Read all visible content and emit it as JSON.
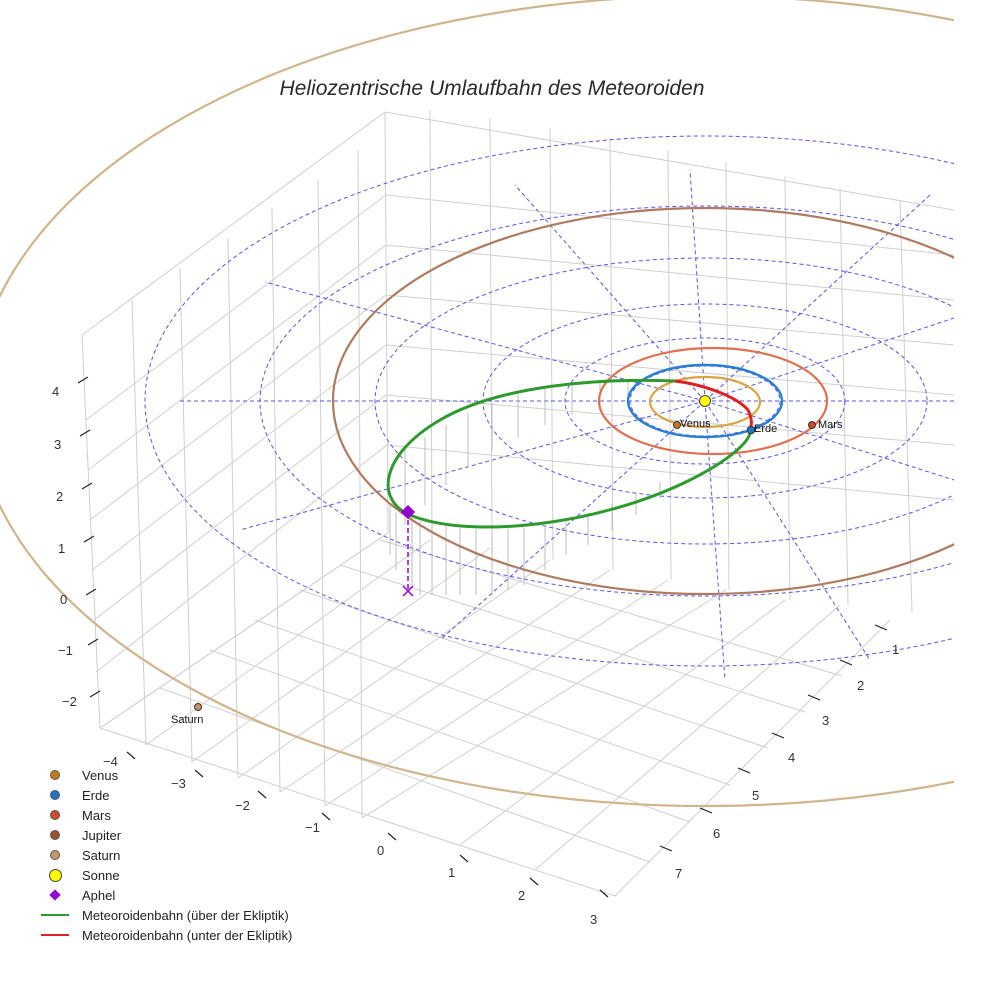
{
  "chart_data": {
    "type": "3d-line",
    "title": "Heliozentrische Umlaufbahn des Meteoroiden",
    "axes": {
      "x": {
        "ticks": [
          "−4",
          "−3",
          "−2",
          "−1",
          "0",
          "1",
          "2",
          "3"
        ]
      },
      "y": {
        "ticks": [
          "1",
          "2",
          "3",
          "4",
          "5",
          "6",
          "7"
        ]
      },
      "z": {
        "ticks": [
          "−2",
          "−1",
          "0",
          "1",
          "2",
          "3",
          "4"
        ]
      }
    },
    "bodies": [
      {
        "name": "Venus",
        "label": "Venus",
        "color": "#c47a1a",
        "orbit_color": "#d9a441"
      },
      {
        "name": "Erde",
        "label": "Erde",
        "color": "#1f77c4",
        "orbit_color": "#2a7fd4"
      },
      {
        "name": "Mars",
        "label": "Mars",
        "color": "#d4482a",
        "orbit_color": "#e07050"
      },
      {
        "name": "Jupiter",
        "label": "",
        "color": "#9a5530",
        "orbit_color": "#b07a5e"
      },
      {
        "name": "Saturn",
        "label": "Saturn",
        "color": "#c8946a",
        "orbit_color": "#d0b08a"
      }
    ],
    "sun": {
      "name": "Sonne",
      "color": "#ffff00"
    },
    "aphel": {
      "name": "Aphel",
      "color": "#9400d3"
    },
    "meteoroid": {
      "above": {
        "name": "Meteoroidenbahn (über der Ekliptik)",
        "color": "#2e9a2e"
      },
      "below": {
        "name": "Meteoroidenbahn (unter der Ekliptik)",
        "color": "#e02020"
      }
    }
  },
  "legend": [
    {
      "label": "Venus",
      "kind": "dot",
      "color": "#c47a1a"
    },
    {
      "label": "Erde",
      "kind": "dot",
      "color": "#1f77c4"
    },
    {
      "label": "Mars",
      "kind": "dot",
      "color": "#d4482a"
    },
    {
      "label": "Jupiter",
      "kind": "dot",
      "color": "#9a5530"
    },
    {
      "label": "Saturn",
      "kind": "dot",
      "color": "#c8946a"
    },
    {
      "label": "Sonne",
      "kind": "bigdot",
      "color": "#ffff00"
    },
    {
      "label": "Aphel",
      "kind": "diamond",
      "color": "#9400d3"
    },
    {
      "label": "Meteoroidenbahn (über der Ekliptik)",
      "kind": "line",
      "color": "#2e9a2e"
    },
    {
      "label": "Meteoroidenbahn (unter der Ekliptik)",
      "kind": "line",
      "color": "#e02020"
    }
  ]
}
